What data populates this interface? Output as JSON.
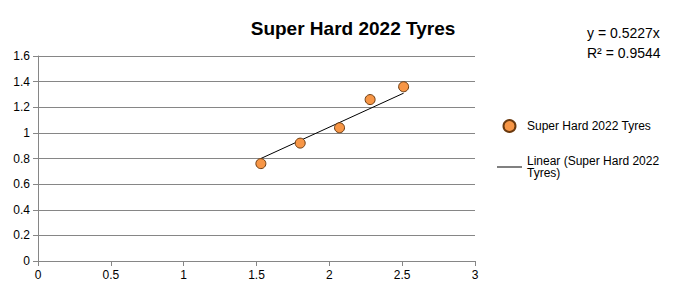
{
  "chart_data": {
    "type": "scatter",
    "title": "Super Hard 2022 Tyres",
    "series": [
      {
        "name": "Super Hard 2022 Tyres",
        "type": "scatter",
        "color": "#f79646",
        "marker": "circle",
        "x": [
          1.53,
          1.8,
          2.07,
          2.28,
          2.51
        ],
        "values": [
          0.76,
          0.92,
          1.04,
          1.26,
          1.36
        ]
      },
      {
        "name": "Linear (Super Hard 2022 Tyres)",
        "type": "line",
        "color": "#000000",
        "line_style": "solid",
        "x": [
          1.53,
          2.51
        ],
        "values": [
          0.8,
          1.31
        ]
      }
    ],
    "xlim": [
      0,
      3
    ],
    "xticks": [
      0,
      0.5,
      1,
      1.5,
      2,
      2.5,
      3
    ],
    "ylim": [
      0,
      1.6
    ],
    "yticks": [
      0,
      0.2,
      0.4,
      0.6,
      0.8,
      1,
      1.2,
      1.4,
      1.6
    ],
    "grid": true,
    "legend": "right",
    "annotations": [
      "y = 0.5227x",
      "R² = 0.9544"
    ]
  }
}
